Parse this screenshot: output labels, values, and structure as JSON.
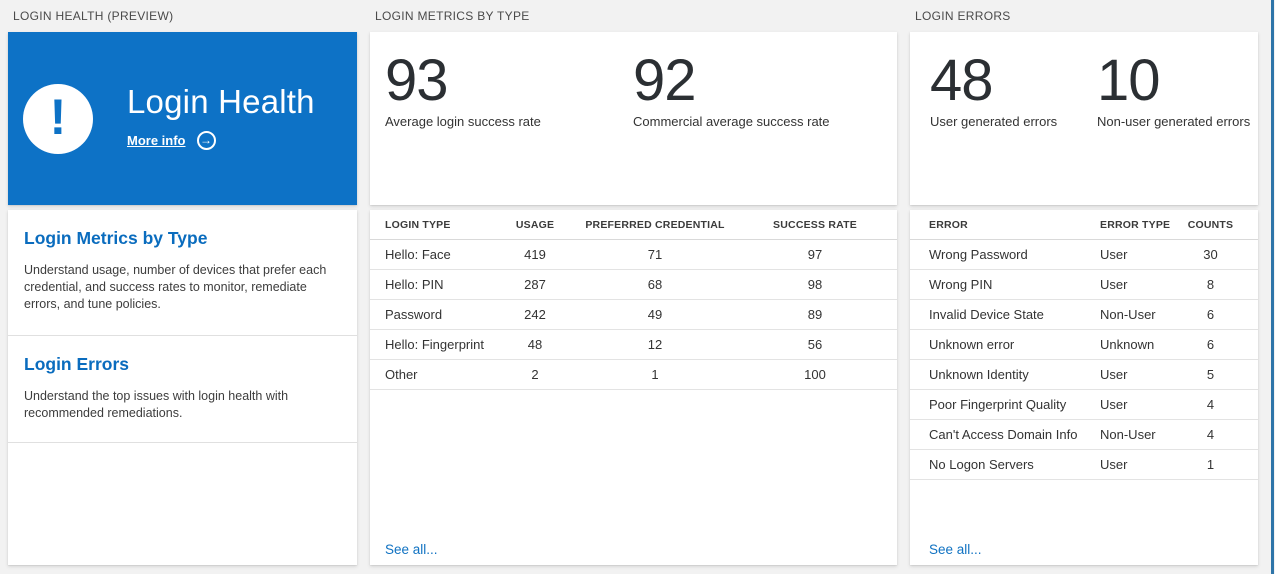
{
  "colors": {
    "page_bg": "#f2f2f2",
    "card_bg": "#ffffff",
    "tile_blue": "#0d72c6",
    "heading_blue": "#0a6cbe",
    "link_blue": "#1072c2",
    "blade_edge": "#2e75a9"
  },
  "icons": {
    "alert_icon": "!",
    "arrow_right_circle_icon": "→"
  },
  "panels": {
    "health": {
      "header": "LOGIN HEALTH (PREVIEW)",
      "tile": {
        "title": "Login Health",
        "more_info_label": "More info"
      },
      "sections": [
        {
          "title": "Login Metrics by Type",
          "description": "Understand usage, number of devices that prefer each credential, and success rates to monitor, remediate errors, and tune policies."
        },
        {
          "title": "Login Errors",
          "description": "Understand the top issues with login health with recommended remediations."
        }
      ]
    },
    "metrics": {
      "header": "LOGIN METRICS BY TYPE",
      "stats": [
        {
          "value": "93",
          "label": "Average login success rate"
        },
        {
          "value": "92",
          "label": "Commercial average success rate"
        }
      ],
      "table": {
        "columns": [
          "LOGIN TYPE",
          "USAGE",
          "PREFERRED CREDENTIAL",
          "SUCCESS RATE"
        ],
        "rows": [
          [
            "Hello: Face",
            "419",
            "71",
            "97"
          ],
          [
            "Hello: PIN",
            "287",
            "68",
            "98"
          ],
          [
            "Password",
            "242",
            "49",
            "89"
          ],
          [
            "Hello: Fingerprint",
            "48",
            "12",
            "56"
          ],
          [
            "Other",
            "2",
            "1",
            "100"
          ]
        ]
      },
      "see_all_label": "See all..."
    },
    "errors": {
      "header": "LOGIN ERRORS",
      "stats": [
        {
          "value": "48",
          "label": "User generated errors"
        },
        {
          "value": "10",
          "label": "Non-user generated errors"
        }
      ],
      "table": {
        "columns": [
          "ERROR",
          "ERROR TYPE",
          "COUNTS"
        ],
        "rows": [
          [
            "Wrong Password",
            "User",
            "30"
          ],
          [
            "Wrong PIN",
            "User",
            "8"
          ],
          [
            "Invalid Device State",
            "Non-User",
            "6"
          ],
          [
            "Unknown error",
            "Unknown",
            "6"
          ],
          [
            "Unknown Identity",
            "User",
            "5"
          ],
          [
            "Poor Fingerprint Quality",
            "User",
            "4"
          ],
          [
            "Can't Access Domain Info",
            "Non-User",
            "4"
          ],
          [
            "No Logon Servers",
            "User",
            "1"
          ]
        ]
      },
      "see_all_label": "See all..."
    }
  }
}
